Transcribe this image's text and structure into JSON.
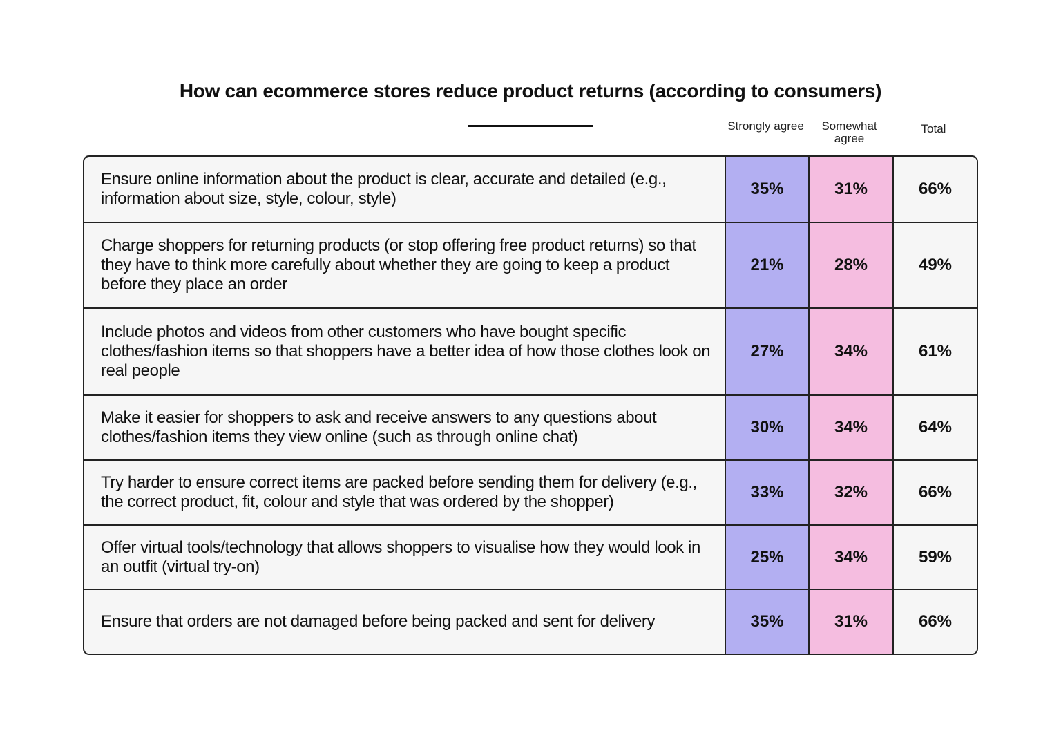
{
  "chart_data": {
    "type": "table",
    "title": "How can ecommerce stores reduce product returns (according to consumers)",
    "columns": [
      "Strongly agree",
      "Somewhat agree",
      "Total"
    ],
    "column_colors": {
      "Strongly agree": "#b3aff2",
      "Somewhat agree": "#f5bde0",
      "Total": "#f6f6f6"
    },
    "rows": [
      {
        "label": "Ensure online information about the product is clear, accurate and detailed (e.g., information about size, style, colour, style)",
        "values": [
          "35%",
          "31%",
          "66%"
        ]
      },
      {
        "label": "Charge shoppers for returning products (or stop offering free product returns) so that they have to think more carefully about whether they are going to keep a product before they place an order",
        "values": [
          "21%",
          "28%",
          "49%"
        ]
      },
      {
        "label": "Include photos and videos from other customers who have bought specific clothes/fashion items so that shoppers have a better idea of how those clothes look on real people",
        "values": [
          "27%",
          "34%",
          "61%"
        ]
      },
      {
        "label": "Make it easier for shoppers to ask and receive answers to any questions about clothes/fashion items they view online (such as through online chat)",
        "values": [
          "30%",
          "34%",
          "64%"
        ]
      },
      {
        "label": "Try harder to ensure correct items are packed before sending them for delivery (e.g., the correct product, fit, colour and style that was ordered by the shopper)",
        "values": [
          "33%",
          "32%",
          "66%"
        ]
      },
      {
        "label": "Offer virtual tools/technology that allows shoppers to visualise how they would look in an outfit (virtual try-on)",
        "values": [
          "25%",
          "34%",
          "59%"
        ]
      },
      {
        "label": "Ensure that orders are not damaged before being packed and sent for delivery",
        "values": [
          "35%",
          "31%",
          "66%"
        ]
      }
    ]
  }
}
